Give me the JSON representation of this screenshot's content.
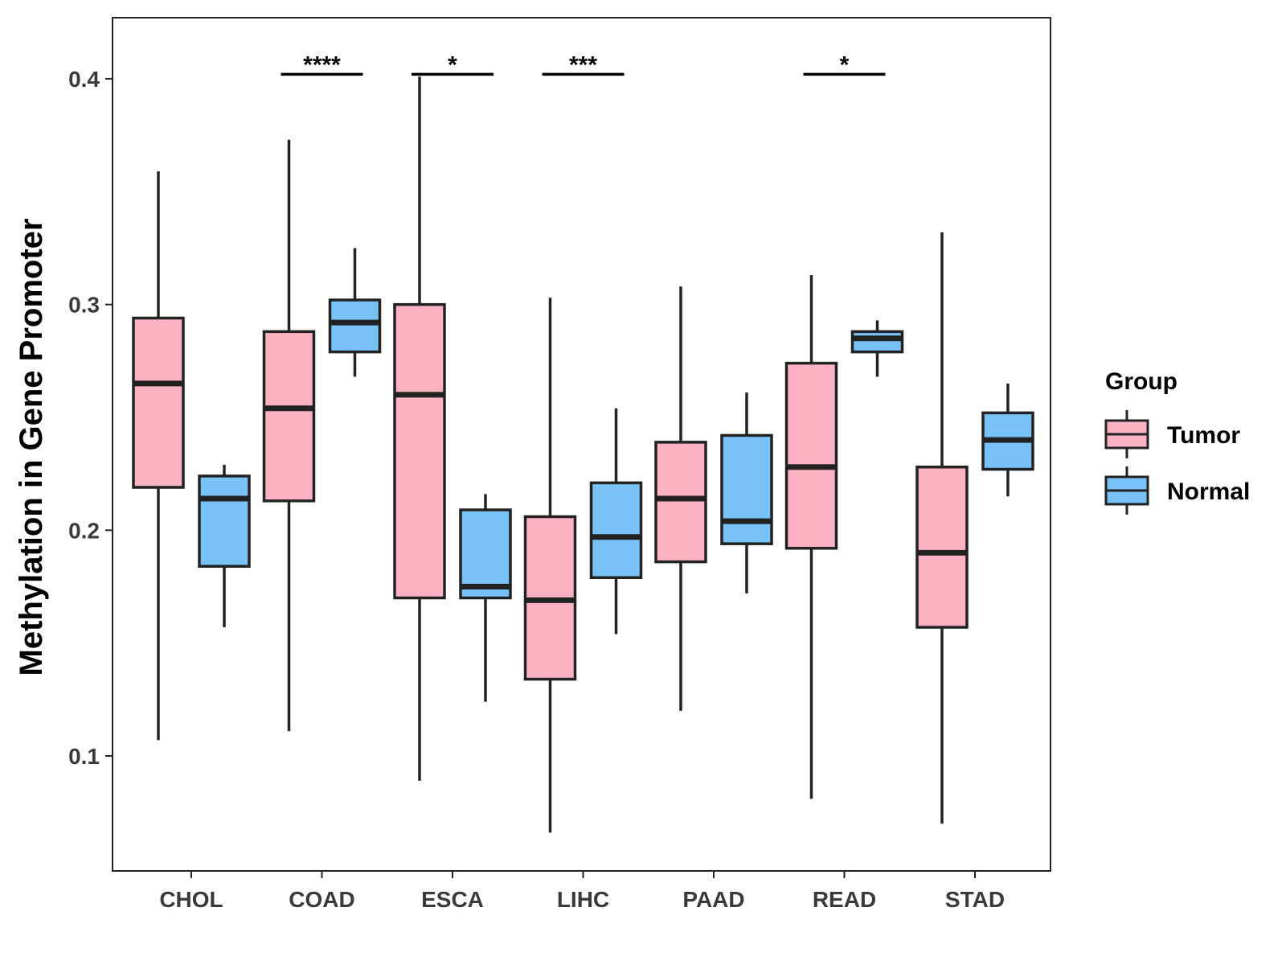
{
  "chart_data": {
    "type": "box",
    "title": "",
    "xlabel": "",
    "ylabel": "Methylation in Gene Promoter",
    "ylim": [
      0.05,
      0.428
    ],
    "yticks": [
      0.1,
      0.2,
      0.3,
      0.4
    ],
    "ytick_labels": [
      "0.1",
      "0.2",
      "0.3",
      "0.4"
    ],
    "categories": [
      "CHOL",
      "COAD",
      "ESCA",
      "LIHC",
      "PAAD",
      "READ",
      "STAD"
    ],
    "legend": {
      "title": "Group",
      "position": "right",
      "entries": [
        {
          "name": "Tumor",
          "color": "#FCB2C3"
        },
        {
          "name": "Normal",
          "color": "#79C2F7"
        }
      ]
    },
    "series": [
      {
        "name": "Tumor",
        "color": "#FCB2C3",
        "boxes": [
          {
            "min": 0.107,
            "q1": 0.219,
            "median": 0.265,
            "q3": 0.294,
            "max": 0.359
          },
          {
            "min": 0.111,
            "q1": 0.213,
            "median": 0.254,
            "q3": 0.288,
            "max": 0.373
          },
          {
            "min": 0.089,
            "q1": 0.17,
            "median": 0.26,
            "q3": 0.3,
            "max": 0.401
          },
          {
            "min": 0.066,
            "q1": 0.134,
            "median": 0.169,
            "q3": 0.206,
            "max": 0.303
          },
          {
            "min": 0.12,
            "q1": 0.186,
            "median": 0.214,
            "q3": 0.239,
            "max": 0.308
          },
          {
            "min": 0.081,
            "q1": 0.192,
            "median": 0.228,
            "q3": 0.274,
            "max": 0.313
          },
          {
            "min": 0.07,
            "q1": 0.157,
            "median": 0.19,
            "q3": 0.228,
            "max": 0.332
          }
        ]
      },
      {
        "name": "Normal",
        "color": "#79C2F7",
        "boxes": [
          {
            "min": 0.157,
            "q1": 0.184,
            "median": 0.214,
            "q3": 0.224,
            "max": 0.229
          },
          {
            "min": 0.268,
            "q1": 0.279,
            "median": 0.292,
            "q3": 0.302,
            "max": 0.325
          },
          {
            "min": 0.124,
            "q1": 0.17,
            "median": 0.175,
            "q3": 0.209,
            "max": 0.216
          },
          {
            "min": 0.154,
            "q1": 0.179,
            "median": 0.197,
            "q3": 0.221,
            "max": 0.254
          },
          {
            "min": 0.172,
            "q1": 0.194,
            "median": 0.204,
            "q3": 0.242,
            "max": 0.261
          },
          {
            "min": 0.268,
            "q1": 0.279,
            "median": 0.285,
            "q3": 0.288,
            "max": 0.293
          },
          {
            "min": 0.215,
            "q1": 0.227,
            "median": 0.24,
            "q3": 0.252,
            "max": 0.265
          }
        ]
      }
    ],
    "annotations": [
      {
        "category": "COAD",
        "label": "****"
      },
      {
        "category": "ESCA",
        "label": "*"
      },
      {
        "category": "LIHC",
        "label": "***"
      },
      {
        "category": "READ",
        "label": "*"
      }
    ],
    "annotation_level": 0.402
  }
}
